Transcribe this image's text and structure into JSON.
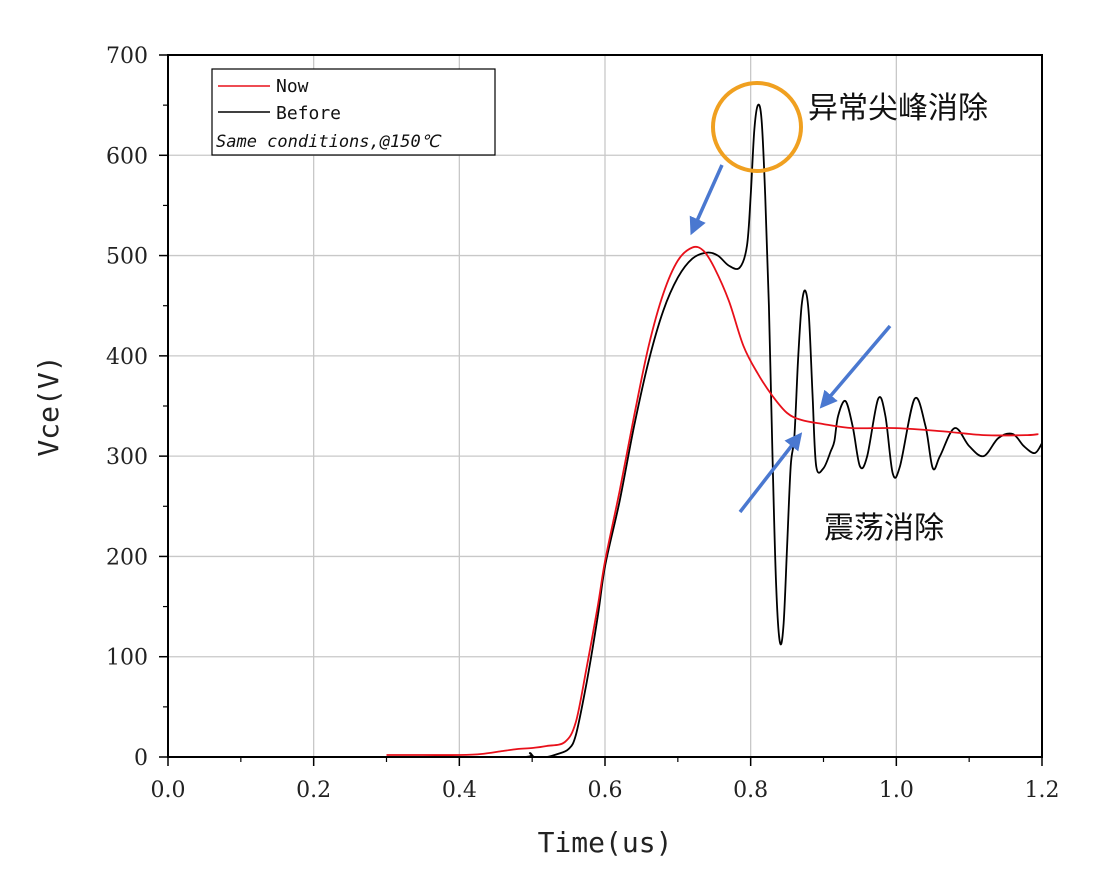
{
  "chart_data": {
    "type": "line",
    "title": "",
    "xlabel": "Time(us)",
    "ylabel": "Vce(V)",
    "xlim": [
      0.0,
      1.2
    ],
    "ylim": [
      0,
      700
    ],
    "grid": true,
    "legend_position": "top-left",
    "x_ticks": [
      "0.0",
      "0.2",
      "0.4",
      "0.6",
      "0.8",
      "1.0",
      "1.2"
    ],
    "y_ticks": [
      "0",
      "100",
      "200",
      "300",
      "400",
      "500",
      "600",
      "700"
    ],
    "legend_note": "Same conditions,@150℃",
    "series": [
      {
        "name": "Now",
        "color": "#e8101a",
        "points": [
          [
            0.3,
            2
          ],
          [
            0.35,
            2
          ],
          [
            0.4,
            2
          ],
          [
            0.43,
            3
          ],
          [
            0.46,
            6
          ],
          [
            0.48,
            8
          ],
          [
            0.5,
            9
          ],
          [
            0.52,
            11
          ],
          [
            0.545,
            15
          ],
          [
            0.56,
            35
          ],
          [
            0.575,
            90
          ],
          [
            0.59,
            150
          ],
          [
            0.6,
            195
          ],
          [
            0.62,
            265
          ],
          [
            0.64,
            340
          ],
          [
            0.66,
            410
          ],
          [
            0.68,
            462
          ],
          [
            0.7,
            495
          ],
          [
            0.72,
            508
          ],
          [
            0.735,
            505
          ],
          [
            0.75,
            488
          ],
          [
            0.77,
            455
          ],
          [
            0.79,
            410
          ],
          [
            0.81,
            382
          ],
          [
            0.83,
            360
          ],
          [
            0.85,
            343
          ],
          [
            0.87,
            336
          ],
          [
            0.9,
            332
          ],
          [
            0.94,
            328
          ],
          [
            1.0,
            328
          ],
          [
            1.06,
            325
          ],
          [
            1.12,
            321
          ],
          [
            1.18,
            321
          ],
          [
            1.195,
            322
          ]
        ]
      },
      {
        "name": "Before",
        "color": "#000000",
        "points": [
          [
            0.3,
            0
          ],
          [
            0.4,
            0
          ],
          [
            0.49,
            0
          ],
          [
            0.497,
            4
          ],
          [
            0.503,
            0
          ],
          [
            0.52,
            0
          ],
          [
            0.535,
            3
          ],
          [
            0.55,
            8
          ],
          [
            0.56,
            22
          ],
          [
            0.575,
            75
          ],
          [
            0.59,
            140
          ],
          [
            0.6,
            190
          ],
          [
            0.62,
            255
          ],
          [
            0.64,
            330
          ],
          [
            0.66,
            395
          ],
          [
            0.68,
            445
          ],
          [
            0.7,
            478
          ],
          [
            0.72,
            497
          ],
          [
            0.74,
            503
          ],
          [
            0.755,
            500
          ],
          [
            0.77,
            490
          ],
          [
            0.785,
            488
          ],
          [
            0.795,
            510
          ],
          [
            0.8,
            560
          ],
          [
            0.805,
            625
          ],
          [
            0.81,
            650
          ],
          [
            0.815,
            635
          ],
          [
            0.82,
            560
          ],
          [
            0.825,
            450
          ],
          [
            0.83,
            300
          ],
          [
            0.835,
            170
          ],
          [
            0.84,
            115
          ],
          [
            0.845,
            130
          ],
          [
            0.85,
            210
          ],
          [
            0.855,
            290
          ],
          [
            0.86,
            320
          ],
          [
            0.865,
            395
          ],
          [
            0.87,
            450
          ],
          [
            0.875,
            465
          ],
          [
            0.88,
            440
          ],
          [
            0.885,
            360
          ],
          [
            0.89,
            290
          ],
          [
            0.9,
            288
          ],
          [
            0.91,
            305
          ],
          [
            0.915,
            315
          ],
          [
            0.92,
            340
          ],
          [
            0.93,
            355
          ],
          [
            0.94,
            330
          ],
          [
            0.95,
            290
          ],
          [
            0.96,
            300
          ],
          [
            0.975,
            357
          ],
          [
            0.985,
            340
          ],
          [
            0.995,
            283
          ],
          [
            1.005,
            290
          ],
          [
            1.025,
            357
          ],
          [
            1.04,
            330
          ],
          [
            1.05,
            288
          ],
          [
            1.06,
            300
          ],
          [
            1.08,
            328
          ],
          [
            1.1,
            310
          ],
          [
            1.12,
            300
          ],
          [
            1.14,
            318
          ],
          [
            1.16,
            322
          ],
          [
            1.175,
            310
          ],
          [
            1.19,
            303
          ],
          [
            1.2,
            313
          ]
        ]
      }
    ],
    "annotations": [
      {
        "text": "异常尖峰消除",
        "color": "#111111"
      },
      {
        "text": "震荡消除",
        "color": "#111111"
      }
    ],
    "highlight_circle_color": "#f0a020",
    "arrow_color": "#4a78d0"
  }
}
